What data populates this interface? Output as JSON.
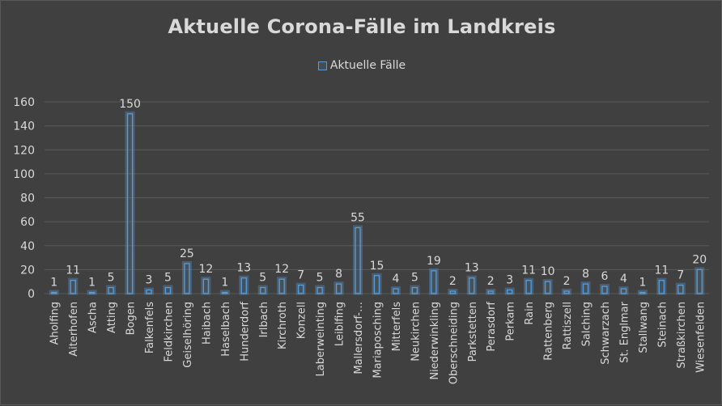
{
  "chart_data": {
    "type": "bar",
    "title": "Aktuelle Corona-Fälle im Landkreis",
    "legend": {
      "position": "top",
      "entries": [
        "Aktuelle Fälle"
      ]
    },
    "series": [
      {
        "name": "Aktuelle Fälle",
        "color": "#5b9bd5",
        "values": [
          1,
          11,
          1,
          5,
          150,
          3,
          5,
          25,
          12,
          1,
          13,
          5,
          12,
          7,
          5,
          8,
          55,
          15,
          4,
          5,
          19,
          2,
          13,
          2,
          3,
          11,
          10,
          2,
          8,
          6,
          4,
          1,
          11,
          7,
          20
        ]
      }
    ],
    "categories": [
      "Aholfing",
      "Aiterhofen",
      "Ascha",
      "Atting",
      "Bogen",
      "Falkenfels",
      "Feldkirchen",
      "Geiselhöring",
      "Haibach",
      "Haselbach",
      "Hunderdorf",
      "Irlbach",
      "Kirchroth",
      "Konzell",
      "Laberweinting",
      "Leiblfing",
      "Mallersdorf-…",
      "Mariaposching",
      "Mitterfels",
      "Neukirchen",
      "Niederwinkling",
      "Oberschneiding",
      "Parkstetten",
      "Perasdorf",
      "Perkam",
      "Rain",
      "Rattenberg",
      "Rattiszell",
      "Salching",
      "Schwarzach",
      "St. Englmar",
      "Stallwang",
      "Steinach",
      "Straßkirchen",
      "Wiesenfelden"
    ],
    "ylim": [
      0,
      160
    ],
    "yticks": [
      0,
      20,
      40,
      60,
      80,
      100,
      120,
      140,
      160
    ],
    "grid": true,
    "xlabel": "",
    "ylabel": ""
  },
  "colors": {
    "background": "#404040",
    "gridline": "#595959",
    "text": "#d9d9d9",
    "bar": "#5b9bd5"
  }
}
